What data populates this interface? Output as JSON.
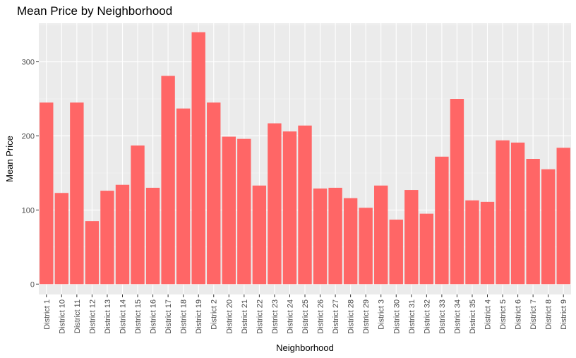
{
  "chart_data": {
    "type": "bar",
    "title": "Mean Price by Neighborhood",
    "xlabel": "Neighborhood",
    "ylabel": "Mean Price",
    "ylim": [
      -14,
      352
    ],
    "yticks": [
      0,
      100,
      200,
      300
    ],
    "grid": true,
    "bar_color": "#ff6666",
    "panel_color": "#ebebeb",
    "categories": [
      "District 1",
      "District 10",
      "District 11",
      "District 12",
      "District 13",
      "District 14",
      "District 15",
      "District 16",
      "District 17",
      "District 18",
      "District 19",
      "District 2",
      "District 20",
      "District 21",
      "District 22",
      "District 23",
      "District 24",
      "District 25",
      "District 26",
      "District 27",
      "District 28",
      "District 29",
      "District 3",
      "District 30",
      "District 31",
      "District 32",
      "District 33",
      "District 34",
      "District 35",
      "District 4",
      "District 5",
      "District 6",
      "District 7",
      "District 8",
      "District 9"
    ],
    "values": [
      245,
      123,
      245,
      85,
      126,
      134,
      187,
      130,
      281,
      237,
      340,
      245,
      199,
      196,
      133,
      217,
      206,
      214,
      129,
      130,
      116,
      103,
      133,
      87,
      127,
      95,
      172,
      250,
      113,
      111,
      194,
      191,
      169,
      155,
      184
    ]
  }
}
